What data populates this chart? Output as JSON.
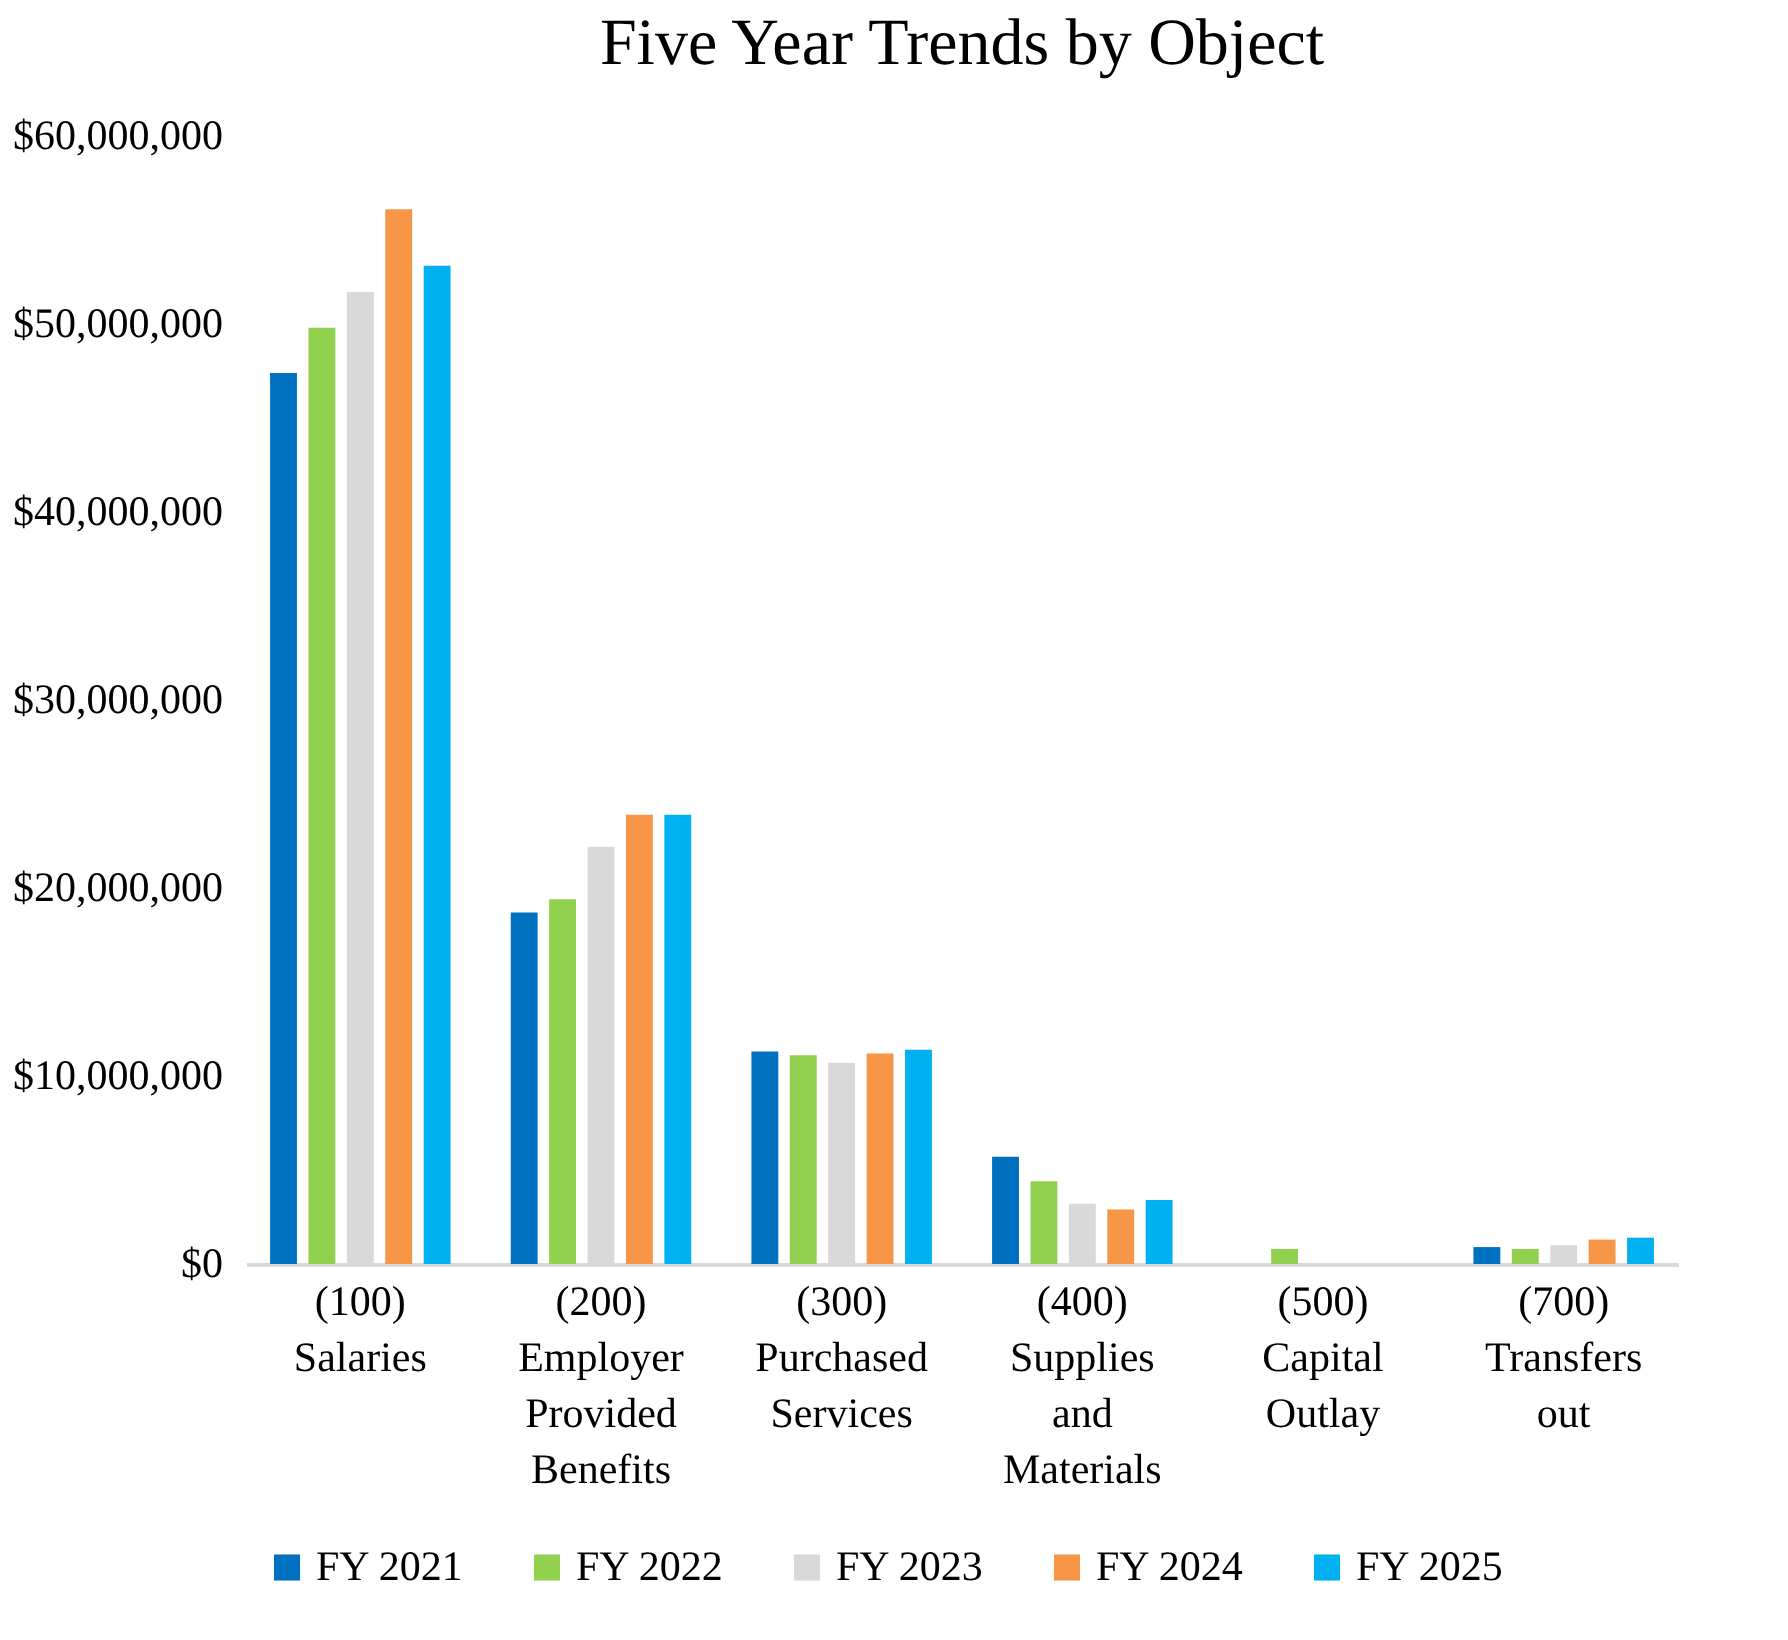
{
  "chart_data": {
    "type": "bar",
    "title": "Five Year Trends by Object",
    "categories": [
      "(100) Salaries",
      "(200) Employer Provided Benefits",
      "(300) Purchased Services",
      "(400) Supplies and Materials",
      "(500) Capital Outlay",
      "(700) Transfers out"
    ],
    "series": [
      {
        "name": "FY 2021",
        "color": "#0070c0",
        "values": [
          47400000,
          18700000,
          11300000,
          5700000,
          0,
          900000
        ]
      },
      {
        "name": "FY 2022",
        "color": "#92d050",
        "values": [
          49800000,
          19400000,
          11100000,
          4400000,
          800000,
          800000
        ]
      },
      {
        "name": "FY 2023",
        "color": "#d9d9d9",
        "values": [
          51700000,
          22200000,
          10700000,
          3200000,
          0,
          1000000
        ]
      },
      {
        "name": "FY 2024",
        "color": "#f79646",
        "values": [
          56100000,
          23900000,
          11200000,
          2900000,
          0,
          1300000
        ]
      },
      {
        "name": "FY 2025",
        "color": "#00b0f0",
        "values": [
          53100000,
          23900000,
          11400000,
          3400000,
          0,
          1400000
        ]
      }
    ],
    "ylim": [
      0,
      60000000
    ],
    "yticks": [
      {
        "value": 0,
        "label": "$0"
      },
      {
        "value": 10000000,
        "label": "$10,000,000"
      },
      {
        "value": 20000000,
        "label": "$20,000,000"
      },
      {
        "value": 30000000,
        "label": "$30,000,000"
      },
      {
        "value": 40000000,
        "label": "$40,000,000"
      },
      {
        "value": 50000000,
        "label": "$50,000,000"
      },
      {
        "value": 60000000,
        "label": "$60,000,000"
      }
    ],
    "grid": false,
    "legend": "bottom"
  }
}
